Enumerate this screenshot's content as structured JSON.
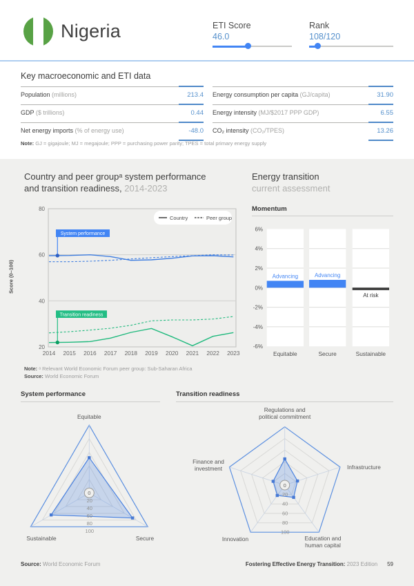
{
  "header": {
    "country": "Nigeria",
    "flag": {
      "green": "#58a245",
      "white": "#ffffff"
    },
    "accent": "#4285f4",
    "eti": {
      "label": "ETI Score",
      "value": "46.0",
      "pct": 45
    },
    "rank": {
      "label": "Rank",
      "value": "108/120",
      "pct": 10
    }
  },
  "macro": {
    "title": "Key macroeconomic and ETI data",
    "left": [
      {
        "label": "Population",
        "unit": " (millions)",
        "value": "213.4"
      },
      {
        "label": "GDP",
        "unit": " ($ trillions)",
        "value": "0.44"
      },
      {
        "label": "Net energy imports",
        "unit": " (% of energy use)",
        "value": "-48.0"
      }
    ],
    "right": [
      {
        "label": "Energy consumption per capita",
        "unit": " (GJ/capita)",
        "value": "31.90"
      },
      {
        "label": "Energy intensity",
        "unit": " (MJ/$2017 PPP GDP)",
        "value": "6.55"
      },
      {
        "label": "CO₂ intensity",
        "unit": " (CO₂/TPES)",
        "value": "13.26"
      }
    ],
    "note_label": "Note:",
    "note_text": " GJ = gigajoule; MJ = megajoule; PPP = purchasing power parity; TPES = total primary energy supply"
  },
  "trend_section": {
    "title_line1": "Country and peer groupᵃ system performance",
    "title_line2": "and transition readiness,",
    "title_period": " 2014-2023",
    "note_label": "Note:",
    "note_text": " ᵃ Relevant World Economic Forum peer group: Sub-Saharan Africa",
    "source_label": "Source:",
    "source_text": " World Economic Forum"
  },
  "energy_panel": {
    "title": "Energy transition",
    "subtitle": "current assessment"
  },
  "footer": {
    "source_label": "Source:",
    "source_text": " World Economic Forum",
    "report_bold": "Fostering Effective Energy Transition:",
    "report_edition": " 2023 Edition",
    "page": "59"
  },
  "chart_data": [
    {
      "id": "trend",
      "type": "line",
      "ylabel": "Score (0–100)",
      "x": [
        2014,
        2015,
        2016,
        2017,
        2018,
        2019,
        2020,
        2021,
        2022,
        2023
      ],
      "ylim": [
        20,
        80
      ],
      "yticks": [
        20,
        40,
        60,
        80
      ],
      "legend": [
        "Country",
        "Peer group"
      ],
      "series": [
        {
          "name": "System performance — Country",
          "group": "Country",
          "style": "solid",
          "color": "#3e7de0",
          "values": [
            59.6,
            59.7,
            60.0,
            59.2,
            57.6,
            57.8,
            58.5,
            59.5,
            59.6,
            59.1
          ]
        },
        {
          "name": "System performance — Peer group",
          "group": "Peer group",
          "style": "dashed",
          "color": "#3e7de0",
          "values": [
            57.0,
            57.0,
            57.2,
            57.6,
            58.2,
            58.7,
            59.2,
            59.6,
            60.0,
            59.9
          ]
        },
        {
          "name": "Transition readiness — Country",
          "group": "Country",
          "style": "solid",
          "color": "#1fb97d",
          "values": [
            21.9,
            22.0,
            22.3,
            23.8,
            26.3,
            28.0,
            24.4,
            20.5,
            24.6,
            26.2
          ]
        },
        {
          "name": "Transition readiness — Peer group",
          "group": "Peer group",
          "style": "dashed",
          "color": "#1fb97d",
          "values": [
            26.1,
            26.6,
            27.3,
            28.1,
            29.4,
            31.3,
            31.7,
            31.7,
            32.1,
            33.2
          ]
        }
      ],
      "badges": [
        {
          "text": "System performance",
          "color": "#4285f4",
          "dot": "#2d5fc4"
        },
        {
          "text": "Transition readiness",
          "color": "#22bd84",
          "dot": "#0a9e62"
        }
      ]
    },
    {
      "id": "momentum",
      "type": "bar",
      "title": "Momentum",
      "categories": [
        "Equitable",
        "Secure",
        "Sustainable"
      ],
      "values": [
        0.7,
        0.8,
        -0.25
      ],
      "statuses": [
        "Advancing",
        "Advancing",
        "At risk"
      ],
      "ylim": [
        -6,
        6
      ],
      "ytick_labels": [
        "6%",
        "4%",
        "2%",
        "0%",
        "-2%",
        "-4%",
        "-6%"
      ],
      "colors": {
        "positive": "#4285f4",
        "negative": "#383838",
        "advancing_text": "#4285f4",
        "at_risk_text": "#333333"
      }
    },
    {
      "id": "radar-system",
      "type": "radar",
      "title": "System performance",
      "axes": [
        "Equitable",
        "Secure",
        "Sustainable"
      ],
      "axis_label_lines": [
        [
          "Equitable"
        ],
        [
          "Secure"
        ],
        [
          "Sustainable"
        ]
      ],
      "values": [
        52,
        74,
        65
      ],
      "scale_ticks": [
        0,
        20,
        40,
        60,
        80,
        100
      ]
    },
    {
      "id": "radar-readiness",
      "type": "radar",
      "title": "Transition readiness",
      "axes": [
        "Regulations and political commitment",
        "Infrastructure",
        "Education and human capital",
        "Innovation",
        "Finance and investment"
      ],
      "axis_label_lines": [
        [
          "Regulations and",
          "political commitment"
        ],
        [
          "Infrastructure"
        ],
        [
          "Education and",
          "human capital"
        ],
        [
          "Innovation"
        ],
        [
          "Finance and",
          "investment"
        ]
      ],
      "values": [
        45,
        23,
        26,
        22,
        21
      ],
      "scale_ticks": [
        0,
        20,
        40,
        60,
        80,
        100
      ]
    }
  ]
}
